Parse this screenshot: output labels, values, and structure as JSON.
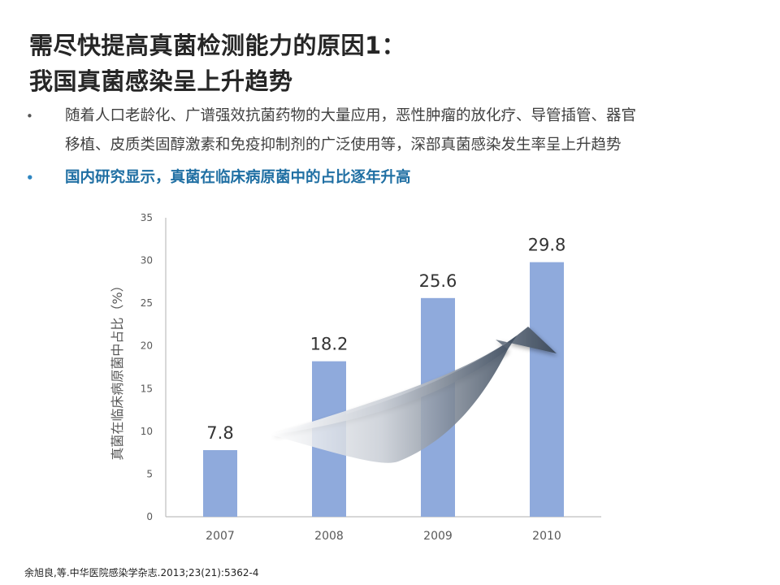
{
  "title": {
    "line1": "需尽快提高真菌检测能力的原因1：",
    "line2": "我国真菌感染呈上升趋势"
  },
  "bullets": [
    {
      "marker": "•",
      "line1": "随着人口老龄化、广谱强效抗菌药物的大量应用，恶性肿瘤的放化疗、导管插管、器官",
      "line2": "移植、皮质类固醇激素和免疫抑制剂的广泛使用等，深部真菌感染发生率呈上升趋势"
    },
    {
      "marker": "•",
      "text": "国内研究显示，真菌在临床病原菌中的占比逐年升高"
    }
  ],
  "chart_data": {
    "type": "bar",
    "categories": [
      "2007",
      "2008",
      "2009",
      "2010"
    ],
    "values": [
      7.8,
      18.2,
      25.6,
      29.8
    ],
    "value_labels": [
      "7.8",
      "18.2",
      "25.6",
      "29.8"
    ],
    "ylabel": "真菌在临床病原菌中占比（%）",
    "xlabel": "",
    "ylim": [
      0,
      35
    ],
    "yticks": [
      0,
      5,
      10,
      15,
      20,
      25,
      30,
      35
    ],
    "ytick_labels": [
      "0",
      "5",
      "10",
      "15",
      "20",
      "25",
      "30",
      "35"
    ],
    "grid": false,
    "annotation": "upward-trend-arrow",
    "bar_color": "#8faadc"
  },
  "reference": "余旭良,等.中华医院感染学杂志.2013;23(21):5362-4"
}
